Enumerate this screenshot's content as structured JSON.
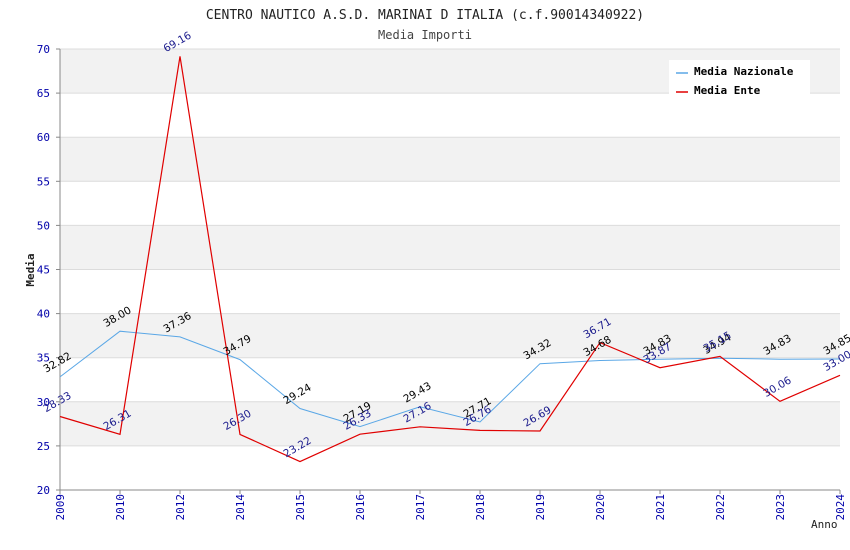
{
  "title": "CENTRO NAUTICO A.S.D. MARINAI D ITALIA (c.f.90014340922)",
  "subtitle": "Media Importi",
  "colors": {
    "nazionale": "#5aa7e6",
    "ente": "#e00000",
    "axis_text": "#0000aa",
    "label_nazionale": "#000000",
    "label_ente": "#1a1a8c",
    "band": "#f2f2f2",
    "grid": "#dcdcdc"
  },
  "legend": {
    "placement": "top-right",
    "items": [
      {
        "name": "Media Nazionale",
        "color": "#5aa7e6"
      },
      {
        "name": "Media Ente",
        "color": "#e00000"
      }
    ]
  },
  "chart_data": {
    "type": "line",
    "title": "CENTRO NAUTICO A.S.D. MARINAI D ITALIA (c.f.90014340922)",
    "subtitle": "Media Importi",
    "xlabel": "Anno",
    "ylabel": "Media",
    "ylim": [
      20,
      70
    ],
    "yticks": [
      20,
      25,
      30,
      35,
      40,
      45,
      50,
      55,
      60,
      65,
      70
    ],
    "grid": true,
    "categories": [
      "2009",
      "2010",
      "2012",
      "2014",
      "2015",
      "2016",
      "2017",
      "2018",
      "2019",
      "2020",
      "2021",
      "2022",
      "2023",
      "2024"
    ],
    "series": [
      {
        "name": "Media Nazionale",
        "values": [
          32.82,
          38.0,
          37.36,
          34.79,
          29.24,
          27.19,
          29.43,
          27.71,
          34.32,
          34.68,
          34.83,
          34.94,
          34.83,
          34.85
        ],
        "labels": [
          "32.82",
          "38.00",
          "37.36",
          "34.79",
          "29.24",
          "27.19",
          "29.43",
          "27.71",
          "34.32",
          "34.68",
          "34.83",
          "34.94",
          "34.83",
          "34.85"
        ]
      },
      {
        "name": "Media Ente",
        "values": [
          28.33,
          26.31,
          69.16,
          26.3,
          23.22,
          26.33,
          27.16,
          26.76,
          26.69,
          36.71,
          33.87,
          35.15,
          30.06,
          33.0
        ],
        "labels": [
          "28.33",
          "26.31",
          "69.16",
          "26.30",
          "23.22",
          "26.33",
          "27.16",
          "26.76",
          "26.69",
          "36.71",
          "33.87",
          "35.15",
          "30.06",
          "33.00"
        ]
      }
    ]
  }
}
